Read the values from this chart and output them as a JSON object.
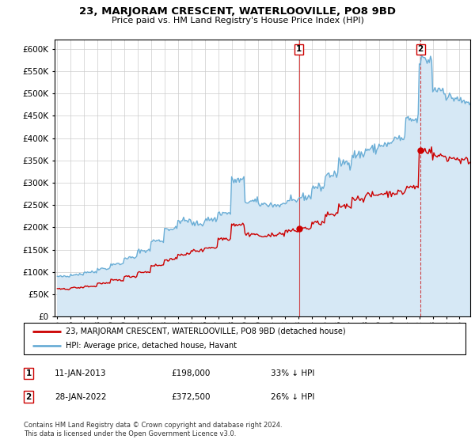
{
  "title": "23, MARJORAM CRESCENT, WATERLOOVILLE, PO8 9BD",
  "subtitle": "Price paid vs. HM Land Registry's House Price Index (HPI)",
  "legend_line1": "23, MARJORAM CRESCENT, WATERLOOVILLE, PO8 9BD (detached house)",
  "legend_line2": "HPI: Average price, detached house, Havant",
  "sale1_date": "11-JAN-2013",
  "sale1_price": "£198,000",
  "sale1_hpi": "33% ↓ HPI",
  "sale2_date": "28-JAN-2022",
  "sale2_price": "£372,500",
  "sale2_hpi": "26% ↓ HPI",
  "footer": "Contains HM Land Registry data © Crown copyright and database right 2024.\nThis data is licensed under the Open Government Licence v3.0.",
  "hpi_color": "#6baed6",
  "hpi_fill_color": "#d6e8f5",
  "price_color": "#cc0000",
  "dashed_line_color": "#cc0000",
  "ylim": [
    0,
    620000
  ],
  "yticks": [
    0,
    50000,
    100000,
    150000,
    200000,
    250000,
    300000,
    350000,
    400000,
    450000,
    500000,
    550000,
    600000
  ],
  "sale1_x": 2013.04,
  "sale1_y": 198000,
  "sale2_x": 2022.08,
  "sale2_y": 372500,
  "xmin": 1994.8,
  "xmax": 2025.8
}
